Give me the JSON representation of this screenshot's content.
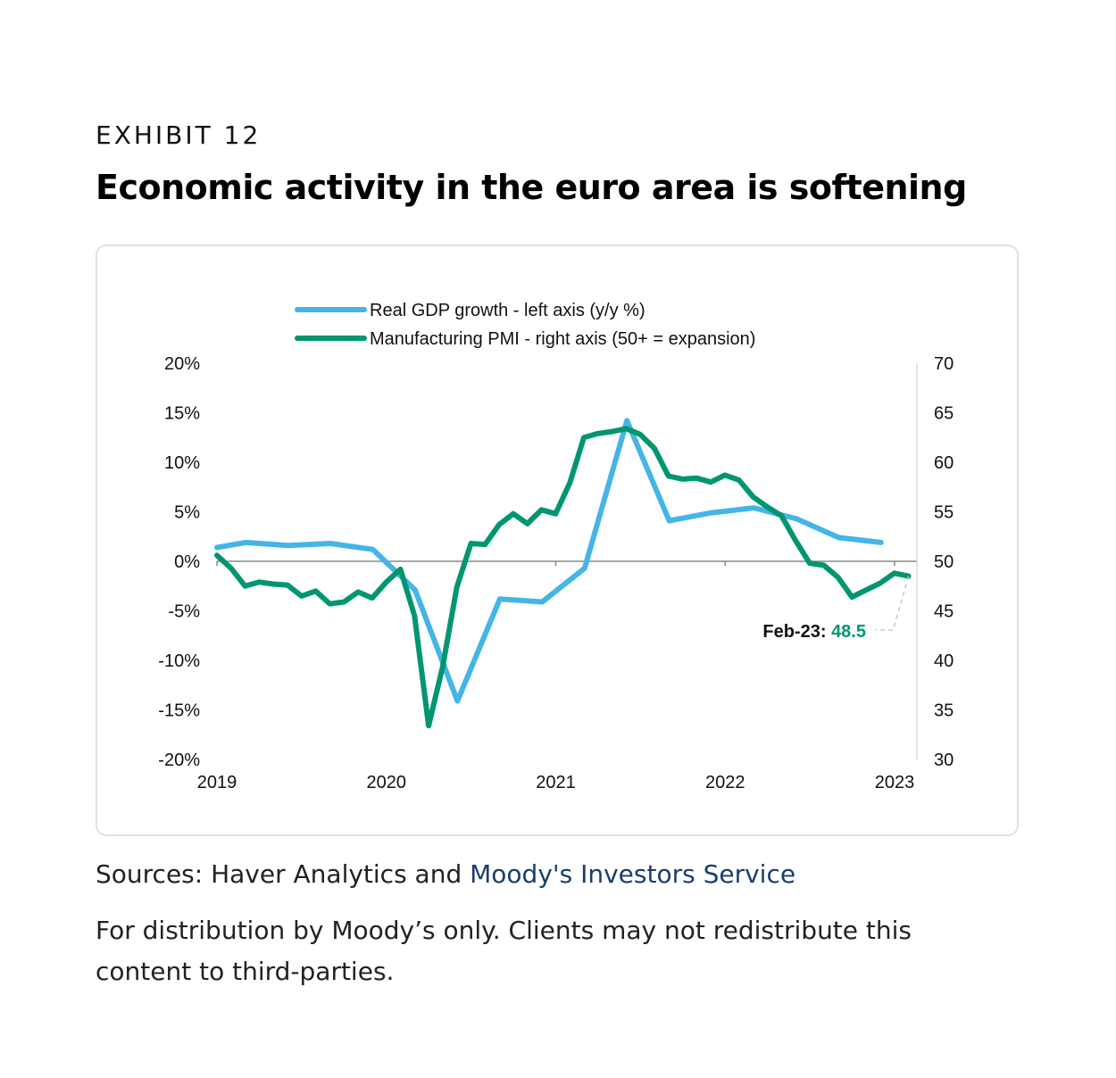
{
  "header": {
    "exhibit": "EXHIBIT 12",
    "title": "Economic activity in the euro area is softening"
  },
  "footer": {
    "sources_prefix": "Sources: Haver Analytics and ",
    "sources_link": "Moody's Investors Service",
    "disclaimer": "For distribution by Moody’s only. Clients may not redistribute this content to third-parties."
  },
  "colors": {
    "gdp": "#45b5e6",
    "pmi": "#009670",
    "axis": "#888888",
    "annotation_value": "#009670"
  },
  "chart_data": {
    "type": "line",
    "title": "Economic activity in the euro area is softening",
    "xlabel": "",
    "ylabel_left": "Real GDP growth (y/y %)",
    "ylabel_right": "Manufacturing PMI",
    "x_ticks": [
      "2019",
      "2020",
      "2021",
      "2022",
      "2023"
    ],
    "x_range": [
      2019.0,
      2023.15
    ],
    "ylim_left": [
      -20,
      20
    ],
    "ylim_right": [
      30,
      70
    ],
    "y_ticks_left": [
      "20%",
      "15%",
      "10%",
      "5%",
      "0%",
      "-5%",
      "-10%",
      "-15%",
      "-20%"
    ],
    "y_ticks_right": [
      "70",
      "65",
      "60",
      "55",
      "50",
      "45",
      "40",
      "35",
      "30"
    ],
    "grid": false,
    "legend_position": "top-center",
    "series": [
      {
        "name": "Real GDP growth - left axis (y/y %)",
        "axis": "left",
        "frequency": "quarterly",
        "x": [
          2019.0,
          2019.17,
          2019.42,
          2019.67,
          2019.92,
          2020.17,
          2020.42,
          2020.67,
          2020.92,
          2021.17,
          2021.42,
          2021.67,
          2021.92,
          2022.17,
          2022.42,
          2022.67,
          2022.92
        ],
        "values": [
          1.4,
          1.9,
          1.6,
          1.8,
          1.2,
          -2.9,
          -14.1,
          -3.8,
          -4.1,
          -0.7,
          14.2,
          4.1,
          4.9,
          5.4,
          4.3,
          2.4,
          1.9
        ]
      },
      {
        "name": "Manufacturing PMI - right axis (50+ = expansion)",
        "axis": "right",
        "frequency": "monthly",
        "start": 2019.0,
        "step": 0.0833,
        "values": [
          50.6,
          49.3,
          47.5,
          47.9,
          47.7,
          47.6,
          46.5,
          47.0,
          45.7,
          45.9,
          46.9,
          46.3,
          47.9,
          49.2,
          44.5,
          33.4,
          39.4,
          47.4,
          51.8,
          51.7,
          53.7,
          54.8,
          53.8,
          55.2,
          54.8,
          57.9,
          62.5,
          62.9,
          63.1,
          63.4,
          62.8,
          61.4,
          58.6,
          58.3,
          58.4,
          58.0,
          58.7,
          58.2,
          56.5,
          55.5,
          54.6,
          52.1,
          49.8,
          49.6,
          48.4,
          46.4,
          47.1,
          47.8,
          48.8,
          48.5
        ]
      }
    ],
    "annotations": [
      {
        "label": "Feb-23:",
        "value": "48.5",
        "series": "Manufacturing PMI"
      }
    ]
  }
}
